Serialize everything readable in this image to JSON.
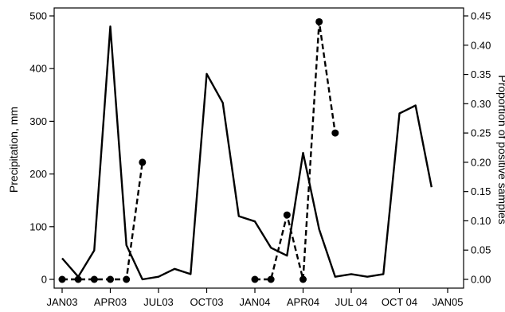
{
  "chart_data": {
    "type": "line",
    "title": "",
    "xlabel": "",
    "ylabel_left": "Precipitation, mm",
    "ylabel_right": "Proportion of positive samples",
    "x_ticks": [
      "JAN03",
      "APR03",
      "JUL03",
      "OCT03",
      "JAN04",
      "APR04",
      "JUL 04",
      "OCT 04",
      "JAN05"
    ],
    "y_left_ticks": [
      "0",
      "100",
      "200",
      "300",
      "400",
      "500"
    ],
    "y_left_range": [
      0,
      500
    ],
    "y_right_ticks": [
      "0.00",
      "0.05",
      "0.10",
      "0.15",
      "0.20",
      "0.25",
      "0.30",
      "0.35",
      "0.40",
      "0.45"
    ],
    "y_right_range": [
      0,
      0.45
    ],
    "x_range_months": [
      0,
      24
    ],
    "grid": false,
    "legend": "none",
    "series": [
      {
        "axis": "left",
        "style": "solid",
        "x": [
          0,
          1,
          2,
          3,
          4,
          5,
          6,
          7,
          8,
          9,
          10,
          11,
          12,
          13,
          14,
          15,
          16,
          17,
          18,
          19,
          20,
          21,
          22,
          23
        ],
        "values": [
          40,
          5,
          55,
          480,
          65,
          0,
          5,
          20,
          10,
          390,
          335,
          120,
          110,
          60,
          45,
          240,
          95,
          5,
          10,
          5,
          10,
          315,
          330,
          175
        ]
      },
      {
        "axis": "right",
        "style": "dashed",
        "markers": true,
        "segments": [
          {
            "x": [
              0,
              1,
              2,
              3,
              4,
              5
            ],
            "values": [
              0.0,
              0.0,
              0.0,
              0.0,
              0.0,
              0.2
            ]
          },
          {
            "x": [
              12,
              13,
              14,
              15,
              16,
              17
            ],
            "values": [
              0.0,
              0.0,
              0.11,
              0.0,
              0.44,
              0.25
            ]
          }
        ]
      }
    ]
  }
}
